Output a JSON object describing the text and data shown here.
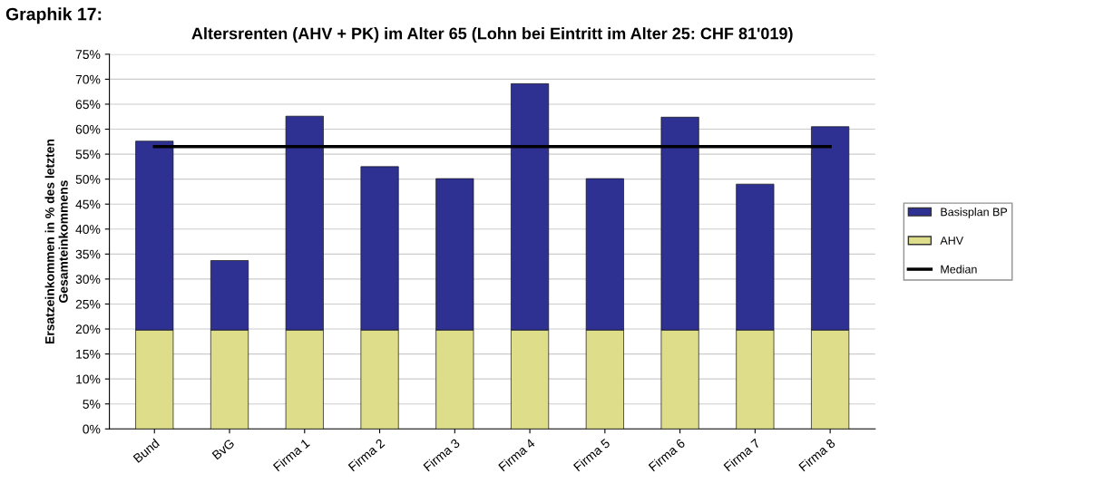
{
  "chart_data": {
    "type": "bar",
    "stacked": true,
    "title": "Altersrenten (AHV + PK) im Alter 65 (Lohn bei Eintritt im Alter 25: CHF 81'019)",
    "ylabel": "Ersatzeinkommen in % des letzten\nGesamteinkommens",
    "annotations": [
      "Graphik 17:"
    ],
    "categories": [
      "Bund",
      "BvG",
      "Firma 1",
      "Firma 2",
      "Firma 3",
      "Firma 4",
      "Firma 5",
      "Firma 6",
      "Firma 7",
      "Firma 8"
    ],
    "series": [
      {
        "name": "AHV",
        "color": "#dede8a",
        "values": [
          19.8,
          19.8,
          19.8,
          19.8,
          19.8,
          19.8,
          19.8,
          19.8,
          19.8,
          19.8
        ]
      },
      {
        "name": "Basisplan BP",
        "color": "#2e3192",
        "values": [
          37.8,
          13.9,
          42.8,
          32.7,
          30.3,
          49.3,
          30.3,
          42.6,
          29.2,
          40.7
        ]
      },
      {
        "name": "Median",
        "type": "line",
        "color": "#000000",
        "values": [
          56.5,
          56.5,
          56.5,
          56.5,
          56.5,
          56.5,
          56.5,
          56.5,
          56.5,
          56.5
        ]
      }
    ],
    "ylim": [
      0,
      75
    ],
    "yticks": [
      {
        "value": 0,
        "label": "0%"
      },
      {
        "value": 5,
        "label": "5%"
      },
      {
        "value": 10,
        "label": "10%"
      },
      {
        "value": 15,
        "label": "15%"
      },
      {
        "value": 20,
        "label": "20%"
      },
      {
        "value": 25,
        "label": "25%"
      },
      {
        "value": 30,
        "label": "30%"
      },
      {
        "value": 35,
        "label": "35%"
      },
      {
        "value": 40,
        "label": "40%"
      },
      {
        "value": 45,
        "label": "45%"
      },
      {
        "value": 50,
        "label": "50%"
      },
      {
        "value": 55,
        "label": "55%"
      },
      {
        "value": 60,
        "label": "60%"
      },
      {
        "value": 65,
        "label": "65%"
      },
      {
        "value": 70,
        "label": "70%"
      },
      {
        "value": 75,
        "label": "75%"
      }
    ],
    "grid": "y",
    "legend": "right",
    "marker": "none"
  }
}
